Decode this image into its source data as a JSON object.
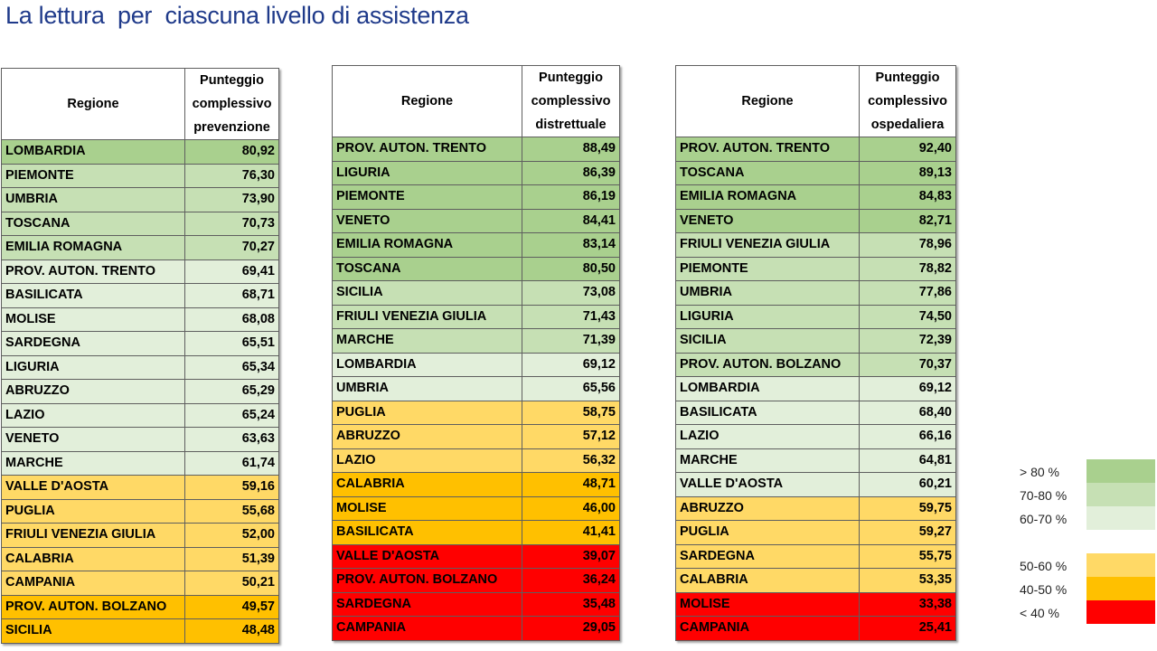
{
  "title": "La lettura  per  ciascuna livello di assistenza",
  "legend": [
    {
      "label": "> 80 %",
      "color": "#a9d08e"
    },
    {
      "label": "70-80 %",
      "color": "#c6e0b4"
    },
    {
      "label": "60-70 %",
      "color": "#e2efda"
    },
    {
      "label": "50-60 %",
      "color": "#ffd966"
    },
    {
      "label": "40-50 %",
      "color": "#ffc000"
    },
    {
      "label": "< 40 %",
      "color": "#ff0000"
    }
  ],
  "tables": [
    {
      "header": {
        "region": "Regione",
        "score_lines": [
          "Punteggio",
          "complessivo",
          "prevenzione"
        ]
      },
      "rows": [
        {
          "region": "LOMBARDIA",
          "score": "80,92",
          "band": "g1"
        },
        {
          "region": "PIEMONTE",
          "score": "76,30",
          "band": "g2"
        },
        {
          "region": "UMBRIA",
          "score": "73,90",
          "band": "g2"
        },
        {
          "region": "TOSCANA",
          "score": "70,73",
          "band": "g2"
        },
        {
          "region": "EMILIA ROMAGNA",
          "score": "70,27",
          "band": "g2"
        },
        {
          "region": "PROV. AUTON. TRENTO",
          "score": "69,41",
          "band": "g3"
        },
        {
          "region": "BASILICATA",
          "score": "68,71",
          "band": "g3"
        },
        {
          "region": "MOLISE",
          "score": "68,08",
          "band": "g3"
        },
        {
          "region": "SARDEGNA",
          "score": "65,51",
          "band": "g3"
        },
        {
          "region": "LIGURIA",
          "score": "65,34",
          "band": "g3"
        },
        {
          "region": "ABRUZZO",
          "score": "65,29",
          "band": "g3"
        },
        {
          "region": "LAZIO",
          "score": "65,24",
          "band": "g3"
        },
        {
          "region": "VENETO",
          "score": "63,63",
          "band": "g3"
        },
        {
          "region": "MARCHE",
          "score": "61,74",
          "band": "g3"
        },
        {
          "region": "VALLE D'AOSTA",
          "score": "59,16",
          "band": "y1"
        },
        {
          "region": "PUGLIA",
          "score": "55,68",
          "band": "y1"
        },
        {
          "region": "FRIULI VENEZIA GIULIA",
          "score": "52,00",
          "band": "y1"
        },
        {
          "region": "CALABRIA",
          "score": "51,39",
          "band": "y1"
        },
        {
          "region": "CAMPANIA",
          "score": "50,21",
          "band": "y1"
        },
        {
          "region": "PROV. AUTON. BOLZANO",
          "score": "49,57",
          "band": "y2"
        },
        {
          "region": "SICILIA",
          "score": "48,48",
          "band": "y2"
        }
      ]
    },
    {
      "header": {
        "region": "Regione",
        "score_lines": [
          "Punteggio",
          "complessivo",
          "distrettuale"
        ]
      },
      "rows": [
        {
          "region": "PROV. AUTON. TRENTO",
          "score": "88,49",
          "band": "g1"
        },
        {
          "region": "LIGURIA",
          "score": "86,39",
          "band": "g1"
        },
        {
          "region": "PIEMONTE",
          "score": "86,19",
          "band": "g1"
        },
        {
          "region": "VENETO",
          "score": "84,41",
          "band": "g1"
        },
        {
          "region": "EMILIA ROMAGNA",
          "score": "83,14",
          "band": "g1"
        },
        {
          "region": "TOSCANA",
          "score": "80,50",
          "band": "g1"
        },
        {
          "region": "SICILIA",
          "score": "73,08",
          "band": "g2"
        },
        {
          "region": "FRIULI VENEZIA GIULIA",
          "score": "71,43",
          "band": "g2"
        },
        {
          "region": "MARCHE",
          "score": "71,39",
          "band": "g2"
        },
        {
          "region": "LOMBARDIA",
          "score": "69,12",
          "band": "g3"
        },
        {
          "region": "UMBRIA",
          "score": "65,56",
          "band": "g3"
        },
        {
          "region": "PUGLIA",
          "score": "58,75",
          "band": "y1"
        },
        {
          "region": "ABRUZZO",
          "score": "57,12",
          "band": "y1"
        },
        {
          "region": "LAZIO",
          "score": "56,32",
          "band": "y1"
        },
        {
          "region": "CALABRIA",
          "score": "48,71",
          "band": "y2"
        },
        {
          "region": "MOLISE",
          "score": "46,00",
          "band": "y2"
        },
        {
          "region": "BASILICATA",
          "score": "41,41",
          "band": "y2"
        },
        {
          "region": "VALLE D'AOSTA",
          "score": "39,07",
          "band": "r"
        },
        {
          "region": "PROV. AUTON. BOLZANO",
          "score": "36,24",
          "band": "r"
        },
        {
          "region": "SARDEGNA",
          "score": "35,48",
          "band": "r"
        },
        {
          "region": "CAMPANIA",
          "score": "29,05",
          "band": "r"
        }
      ]
    },
    {
      "header": {
        "region": "Regione",
        "score_lines": [
          "Punteggio",
          "complessivo",
          "ospedaliera"
        ]
      },
      "rows": [
        {
          "region": "PROV. AUTON. TRENTO",
          "score": "92,40",
          "band": "g1"
        },
        {
          "region": "TOSCANA",
          "score": "89,13",
          "band": "g1"
        },
        {
          "region": "EMILIA ROMAGNA",
          "score": "84,83",
          "band": "g1"
        },
        {
          "region": "VENETO",
          "score": "82,71",
          "band": "g1"
        },
        {
          "region": "FRIULI VENEZIA GIULIA",
          "score": "78,96",
          "band": "g2"
        },
        {
          "region": "PIEMONTE",
          "score": "78,82",
          "band": "g2"
        },
        {
          "region": "UMBRIA",
          "score": "77,86",
          "band": "g2"
        },
        {
          "region": "LIGURIA",
          "score": "74,50",
          "band": "g2"
        },
        {
          "region": "SICILIA",
          "score": "72,39",
          "band": "g2"
        },
        {
          "region": "PROV. AUTON. BOLZANO",
          "score": "70,37",
          "band": "g2"
        },
        {
          "region": "LOMBARDIA",
          "score": "69,12",
          "band": "g3"
        },
        {
          "region": "BASILICATA",
          "score": "68,40",
          "band": "g3"
        },
        {
          "region": "LAZIO",
          "score": "66,16",
          "band": "g3"
        },
        {
          "region": "MARCHE",
          "score": "64,81",
          "band": "g3"
        },
        {
          "region": "VALLE D'AOSTA",
          "score": "60,21",
          "band": "g3"
        },
        {
          "region": "ABRUZZO",
          "score": "59,75",
          "band": "y1"
        },
        {
          "region": "PUGLIA",
          "score": "59,27",
          "band": "y1"
        },
        {
          "region": "SARDEGNA",
          "score": "55,75",
          "band": "y1"
        },
        {
          "region": "CALABRIA",
          "score": "53,35",
          "band": "y1"
        },
        {
          "region": "MOLISE",
          "score": "33,38",
          "band": "r"
        },
        {
          "region": "CAMPANIA",
          "score": "25,41",
          "band": "r"
        }
      ]
    }
  ]
}
